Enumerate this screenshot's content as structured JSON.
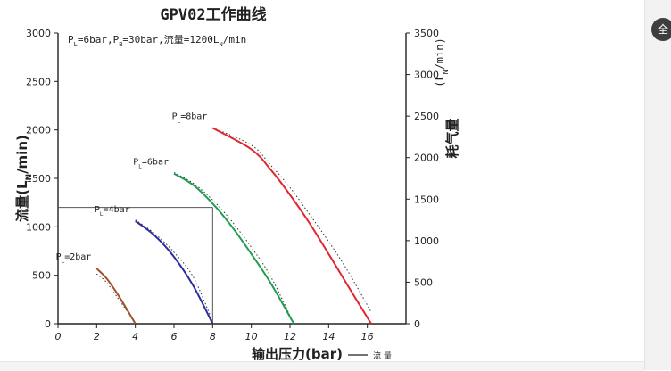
{
  "fullscreen_button": {
    "label": "全"
  },
  "chart_data": {
    "type": "line",
    "title": "GPV02工作曲线",
    "annotation": {
      "parts": [
        "P",
        "L",
        "=6bar,P",
        "B",
        "=30bar,流量=1200L",
        "N",
        "/min"
      ]
    },
    "x_axis": {
      "label": "输出压力(bar)",
      "range": [
        0,
        18
      ],
      "ticks": [
        0,
        2,
        4,
        6,
        8,
        10,
        12,
        14,
        16
      ]
    },
    "y_left": {
      "label_parts": [
        "流量(L",
        "N",
        "/min)"
      ],
      "range": [
        0,
        3000
      ],
      "ticks": [
        0,
        500,
        1000,
        1500,
        2000,
        2500,
        3000
      ]
    },
    "y_right": {
      "label": "耗气量",
      "unit_parts": [
        "(L",
        "N",
        "/min)"
      ],
      "range": [
        0,
        3500
      ],
      "ticks": [
        0,
        500,
        1000,
        1500,
        2000,
        2500,
        3000,
        3500
      ]
    },
    "legend": {
      "label": "流 量",
      "position": "bottom-right"
    },
    "reference_point": {
      "x": 8,
      "y": 1200
    },
    "colors": {
      "PL=2bar": "#a0522d",
      "PL=4bar": "#2b2f9e",
      "PL=6bar": "#1f9e4f",
      "PL=8bar": "#e0282e"
    },
    "series": [
      {
        "name": "PL=2bar",
        "label_parts": [
          "P",
          "L",
          "=2bar"
        ],
        "color": "#a0522d",
        "x": [
          2,
          2.5,
          3,
          3.5,
          4
        ],
        "y": [
          570,
          470,
          330,
          170,
          0
        ],
        "consumption_y": [
          600,
          500,
          340,
          175,
          0
        ]
      },
      {
        "name": "PL=4bar",
        "label_parts": [
          "P",
          "L",
          "=4bar"
        ],
        "color": "#2b2f9e",
        "x": [
          4,
          5,
          6,
          7,
          8
        ],
        "y": [
          1060,
          910,
          690,
          390,
          0
        ],
        "consumption_y": [
          1250,
          1085,
          860,
          560,
          30
        ]
      },
      {
        "name": "PL=6bar",
        "label_parts": [
          "P",
          "L",
          "=6bar"
        ],
        "color": "#1f9e4f",
        "x": [
          6,
          7,
          8,
          9,
          10,
          11,
          12.2
        ],
        "y": [
          1550,
          1430,
          1240,
          1000,
          720,
          420,
          0
        ],
        "consumption_y": [
          1820,
          1690,
          1490,
          1230,
          920,
          570,
          0
        ]
      },
      {
        "name": "PL=8bar",
        "label_parts": [
          "P",
          "L",
          "=8bar"
        ],
        "color": "#e0282e",
        "x": [
          8,
          10,
          11,
          12,
          13,
          14,
          15,
          16.2
        ],
        "y": [
          2020,
          1800,
          1590,
          1330,
          1040,
          720,
          390,
          0
        ],
        "consumption_y": [
          2360,
          2150,
          1910,
          1640,
          1320,
          990,
          630,
          140
        ]
      }
    ]
  }
}
